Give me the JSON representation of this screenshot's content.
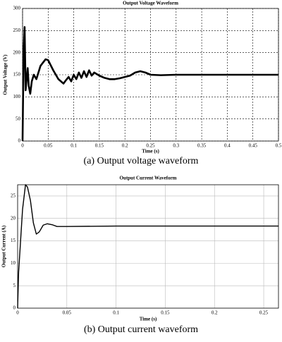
{
  "chart_data": [
    {
      "type": "line",
      "title": "Output Voltage Waveform",
      "xlabel": "Time (s)",
      "ylabel": "Output Voltage (V)",
      "caption": "(a)  Output voltage waveform",
      "x": [
        0,
        0.002,
        0.004,
        0.006,
        0.008,
        0.01,
        0.012,
        0.015,
        0.018,
        0.022,
        0.027,
        0.035,
        0.045,
        0.05,
        0.06,
        0.07,
        0.08,
        0.085,
        0.09,
        0.095,
        0.1,
        0.105,
        0.11,
        0.115,
        0.12,
        0.125,
        0.13,
        0.135,
        0.14,
        0.15,
        0.16,
        0.17,
        0.18,
        0.19,
        0.2,
        0.21,
        0.22,
        0.23,
        0.24,
        0.25,
        0.27,
        0.3,
        0.4,
        0.5
      ],
      "values": [
        0,
        200,
        258,
        115,
        140,
        165,
        125,
        107,
        135,
        150,
        140,
        170,
        185,
        183,
        160,
        140,
        130,
        138,
        145,
        135,
        150,
        140,
        155,
        143,
        158,
        145,
        160,
        148,
        155,
        148,
        143,
        140,
        140,
        142,
        145,
        148,
        155,
        158,
        155,
        150,
        149,
        150,
        150,
        150
      ],
      "color": "#000000",
      "xlim": [
        0,
        0.5
      ],
      "ylim": [
        0,
        300
      ],
      "xticks": [
        0,
        0.05,
        0.1,
        0.15,
        0.2,
        0.25,
        0.3,
        0.35,
        0.4,
        0.45,
        0.5
      ],
      "yticks": [
        0,
        50,
        100,
        150,
        200,
        250,
        300
      ],
      "grid": "dashed"
    },
    {
      "type": "line",
      "title": "Output Current Waveform",
      "xlabel": "Time (s)",
      "ylabel": "Output Current (A)",
      "caption": "(b)  Output current waveform",
      "x": [
        0,
        0.001,
        0.003,
        0.005,
        0.008,
        0.01,
        0.013,
        0.016,
        0.019,
        0.022,
        0.026,
        0.03,
        0.035,
        0.04,
        0.05,
        0.1,
        0.15,
        0.2,
        0.25,
        0.265
      ],
      "values": [
        0,
        8,
        15,
        22,
        27.5,
        27,
        24,
        19,
        16.5,
        17,
        18.5,
        18.8,
        18.6,
        18.2,
        18.2,
        18.3,
        18.3,
        18.3,
        18.3,
        18.3
      ],
      "color": "#000000",
      "xlim": [
        0,
        0.265
      ],
      "ylim": [
        0,
        27.5
      ],
      "xticks": [
        0,
        0.05,
        0.1,
        0.15,
        0.2,
        0.25
      ],
      "yticks": [
        0,
        5,
        10,
        15,
        20,
        25
      ],
      "grid": "solid"
    }
  ]
}
